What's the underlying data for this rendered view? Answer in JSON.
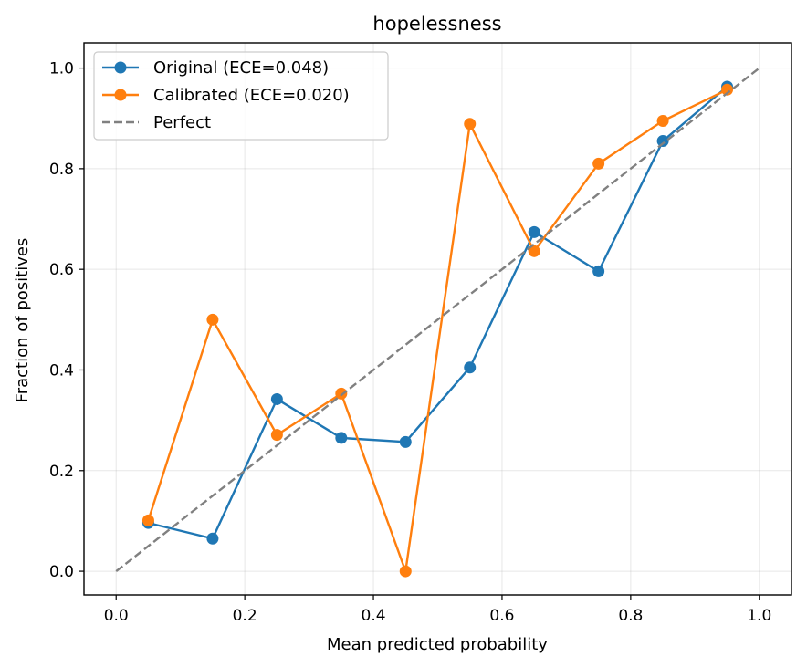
{
  "chart_data": {
    "type": "line",
    "title": "hopelessness",
    "xlabel": "Mean predicted probability",
    "ylabel": "Fraction of positives",
    "xlim": [
      -0.05,
      1.05
    ],
    "ylim": [
      -0.047,
      1.05
    ],
    "xticks": [
      0.0,
      0.2,
      0.4,
      0.6,
      0.8,
      1.0
    ],
    "xtick_labels": [
      "0.0",
      "0.2",
      "0.4",
      "0.6",
      "0.8",
      "1.0"
    ],
    "yticks": [
      0.0,
      0.2,
      0.4,
      0.6,
      0.8,
      1.0
    ],
    "ytick_labels": [
      "0.0",
      "0.2",
      "0.4",
      "0.6",
      "0.8",
      "1.0"
    ],
    "grid": true,
    "legend_position": "top-left",
    "series": [
      {
        "name": "Original (ECE=0.048)",
        "color": "#1f77b4",
        "style": "solid-marker",
        "x": [
          0.05,
          0.15,
          0.25,
          0.35,
          0.45,
          0.55,
          0.65,
          0.75,
          0.85,
          0.95
        ],
        "y": [
          0.096,
          0.065,
          0.342,
          0.265,
          0.257,
          0.405,
          0.674,
          0.596,
          0.855,
          0.963
        ]
      },
      {
        "name": "Calibrated (ECE=0.020)",
        "color": "#ff7f0e",
        "style": "solid-marker",
        "x": [
          0.05,
          0.15,
          0.25,
          0.35,
          0.45,
          0.55,
          0.65,
          0.75,
          0.85,
          0.95
        ],
        "y": [
          0.101,
          0.5,
          0.271,
          0.353,
          0.0,
          0.889,
          0.636,
          0.81,
          0.895,
          0.957
        ]
      },
      {
        "name": "Perfect",
        "color": "#808080",
        "style": "dashed",
        "x": [
          0.0,
          1.0
        ],
        "y": [
          0.0,
          1.0
        ]
      }
    ]
  }
}
